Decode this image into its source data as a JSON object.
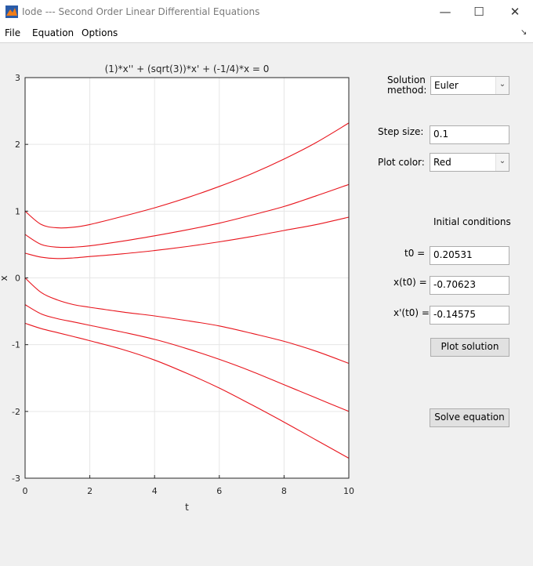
{
  "window": {
    "title": "Iode --- Second Order Linear Differential Equations",
    "minimize_icon": "minimize-icon",
    "maximize_icon": "maximize-icon",
    "close_icon": "close-icon"
  },
  "menu": {
    "file": "File",
    "equation": "Equation",
    "options": "Options",
    "dock_icon": "undock-arrow-icon"
  },
  "controls": {
    "solution_method_label_1": "Solution",
    "solution_method_label_2": "method:",
    "solution_method_value": "Euler",
    "step_size_label": "Step size:",
    "step_size_value": "0.1",
    "plot_color_label": "Plot color:",
    "plot_color_value": "Red",
    "initial_conditions_label": "Initial conditions",
    "t0_label": "t0 =",
    "t0_value": "0.20531",
    "x_t0_label": "x(t0) =",
    "x_t0_value": "-0.70623",
    "xp_t0_label": "x'(t0) =",
    "xp_t0_value": "-0.14575",
    "plot_solution_button": "Plot solution",
    "solve_equation_button": "Solve equation"
  },
  "chart_data": {
    "type": "line",
    "title": "(1)*x'' + (sqrt(3))*x' + (-1/4)*x = 0",
    "xlabel": "t",
    "ylabel": "x",
    "xlim": [
      0,
      10
    ],
    "ylim": [
      -3,
      3
    ],
    "xticks": [
      0,
      2,
      4,
      6,
      8,
      10
    ],
    "yticks": [
      -3,
      -2,
      -1,
      0,
      1,
      2,
      3
    ],
    "grid": true,
    "line_color": "#e8141c",
    "series": [
      {
        "x": [
          0,
          0.5,
          1,
          1.5,
          2,
          3,
          4,
          5,
          6,
          7,
          8,
          9,
          10
        ],
        "y": [
          1.0,
          0.8,
          0.75,
          0.76,
          0.8,
          0.92,
          1.05,
          1.2,
          1.37,
          1.56,
          1.78,
          2.03,
          2.32
        ]
      },
      {
        "x": [
          0,
          0.5,
          1,
          1.5,
          2,
          3,
          4,
          5,
          6,
          7,
          8,
          9,
          10
        ],
        "y": [
          0.65,
          0.5,
          0.46,
          0.46,
          0.48,
          0.55,
          0.63,
          0.72,
          0.82,
          0.94,
          1.07,
          1.23,
          1.4
        ]
      },
      {
        "x": [
          0,
          0.5,
          1,
          1.5,
          2,
          3,
          4,
          5,
          6,
          7,
          8,
          9,
          10
        ],
        "y": [
          0.37,
          0.31,
          0.29,
          0.3,
          0.32,
          0.36,
          0.41,
          0.47,
          0.54,
          0.62,
          0.71,
          0.8,
          0.91
        ]
      },
      {
        "x": [
          0,
          0.5,
          1,
          1.5,
          2,
          3,
          4,
          5,
          6,
          7,
          8,
          9,
          10
        ],
        "y": [
          0.0,
          -0.22,
          -0.33,
          -0.4,
          -0.44,
          -0.51,
          -0.57,
          -0.64,
          -0.72,
          -0.83,
          -0.95,
          -1.1,
          -1.28
        ]
      },
      {
        "x": [
          0,
          0.5,
          1,
          1.5,
          2,
          3,
          4,
          5,
          6,
          7,
          8,
          9,
          10
        ],
        "y": [
          -0.4,
          -0.54,
          -0.61,
          -0.66,
          -0.71,
          -0.81,
          -0.92,
          -1.06,
          -1.22,
          -1.4,
          -1.6,
          -1.8,
          -2.0
        ]
      },
      {
        "x": [
          0,
          0.5,
          1,
          1.5,
          2,
          3,
          4,
          5,
          6,
          7,
          8,
          9,
          10
        ],
        "y": [
          -0.68,
          -0.76,
          -0.82,
          -0.88,
          -0.94,
          -1.07,
          -1.23,
          -1.43,
          -1.65,
          -1.9,
          -2.16,
          -2.43,
          -2.7
        ]
      }
    ]
  }
}
